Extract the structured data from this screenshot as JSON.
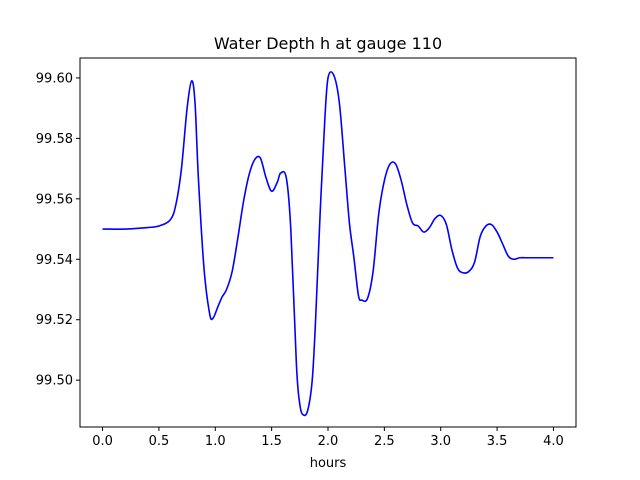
{
  "chart_data": {
    "type": "line",
    "title": "Water Depth h at gauge 110",
    "xlabel": "hours",
    "ylabel": "",
    "xlim": [
      -0.2,
      4.2
    ],
    "ylim": [
      99.4845,
      99.6066
    ],
    "x_ticks": [
      0.0,
      0.5,
      1.0,
      1.5,
      2.0,
      2.5,
      3.0,
      3.5,
      4.0
    ],
    "x_tick_labels": [
      "0.0",
      "0.5",
      "1.0",
      "1.5",
      "2.0",
      "2.5",
      "3.0",
      "3.5",
      "4.0"
    ],
    "y_ticks": [
      99.5,
      99.52,
      99.54,
      99.56,
      99.58,
      99.6
    ],
    "y_tick_labels": [
      "99.50",
      "99.52",
      "99.54",
      "99.56",
      "99.58",
      "99.60"
    ],
    "grid": false,
    "series": [
      {
        "color": "#0000ff",
        "x": [
          0.0,
          0.2,
          0.4,
          0.5,
          0.6,
          0.65,
          0.7,
          0.75,
          0.79,
          0.82,
          0.85,
          0.9,
          0.95,
          0.98,
          1.02,
          1.06,
          1.1,
          1.15,
          1.2,
          1.25,
          1.3,
          1.35,
          1.4,
          1.45,
          1.5,
          1.55,
          1.58,
          1.63,
          1.67,
          1.72,
          1.75,
          1.78,
          1.82,
          1.86,
          1.89,
          1.93,
          1.97,
          2.0,
          2.05,
          2.1,
          2.15,
          2.19,
          2.23,
          2.27,
          2.3,
          2.35,
          2.4,
          2.45,
          2.5,
          2.55,
          2.6,
          2.65,
          2.7,
          2.75,
          2.8,
          2.85,
          2.9,
          2.95,
          3.0,
          3.05,
          3.1,
          3.15,
          3.2,
          3.25,
          3.3,
          3.35,
          3.4,
          3.45,
          3.5,
          3.55,
          3.6,
          3.65,
          3.7,
          3.75,
          3.78,
          3.82,
          3.85,
          3.9,
          3.95,
          3.97,
          4.0
        ],
        "y": [
          99.55,
          99.55,
          99.5505,
          99.551,
          99.553,
          99.558,
          99.57,
          99.59,
          99.599,
          99.592,
          99.567,
          99.537,
          99.522,
          99.5205,
          99.524,
          99.5275,
          99.53,
          99.536,
          99.547,
          99.559,
          99.568,
          99.573,
          99.5735,
          99.567,
          99.5625,
          99.5655,
          99.5685,
          99.567,
          99.55,
          99.505,
          99.492,
          99.4885,
          99.49,
          99.5,
          99.52,
          99.555,
          99.585,
          99.6,
          99.601,
          99.592,
          99.57,
          99.552,
          99.5405,
          99.528,
          99.5265,
          99.527,
          99.536,
          99.555,
          99.566,
          99.5715,
          99.5715,
          99.566,
          99.558,
          99.552,
          99.551,
          99.549,
          99.5505,
          99.5535,
          99.5545,
          99.5515,
          99.543,
          99.537,
          99.5355,
          99.536,
          99.539,
          99.5475,
          99.551,
          99.5515,
          99.549,
          99.545,
          99.541,
          99.54,
          99.5405,
          99.5405,
          99.5405,
          99.5405,
          99.5405,
          99.5405,
          99.5405,
          99.5405,
          99.5405
        ]
      }
    ]
  }
}
